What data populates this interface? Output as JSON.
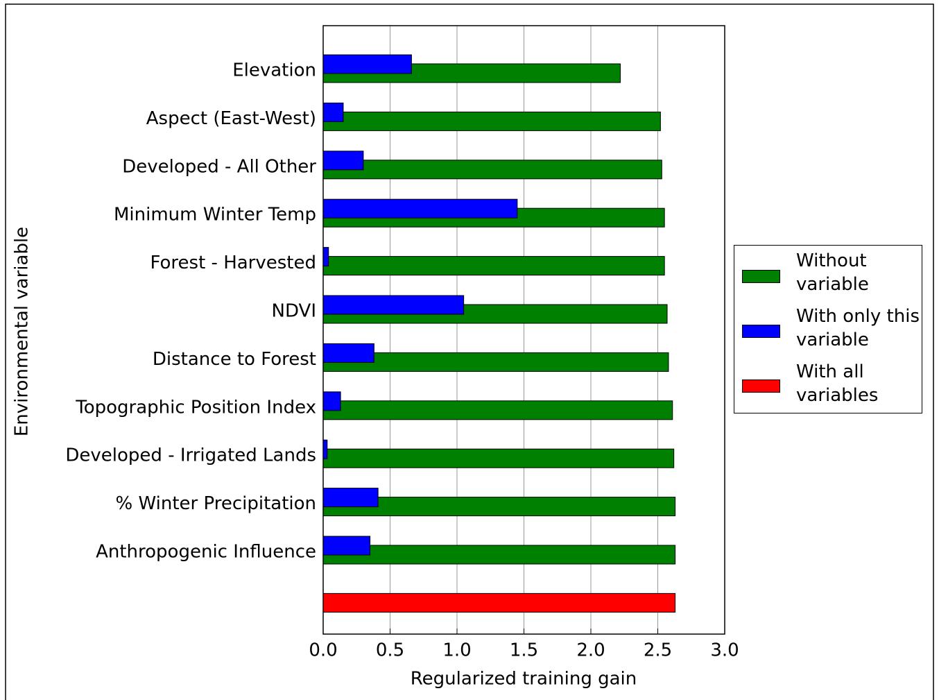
{
  "chart_data": {
    "type": "barh",
    "xlabel": "Regularized training gain",
    "ylabel": "Environmental variable",
    "categories": [
      "Elevation",
      "Aspect (East-West)",
      "Developed - All Other",
      "Minimum Winter Temp",
      "Forest - Harvested",
      "NDVI",
      "Distance to Forest",
      "Topographic Position Index",
      "Developed - Irrigated Lands",
      "% Winter Precipitation",
      "Anthropogenic Influence",
      null
    ],
    "series": [
      {
        "name": "Without variable",
        "color": "#008000",
        "values": [
          2.22,
          2.52,
          2.53,
          2.55,
          2.55,
          2.57,
          2.58,
          2.61,
          2.62,
          2.63,
          2.63,
          null
        ]
      },
      {
        "name": "With only this variable",
        "color": "#0000ff",
        "values": [
          0.66,
          0.15,
          0.3,
          1.45,
          0.04,
          1.05,
          0.38,
          0.13,
          0.03,
          0.41,
          0.35,
          null
        ]
      },
      {
        "name": "With all variables",
        "color": "#ff0000",
        "values": [
          null,
          null,
          null,
          null,
          null,
          null,
          null,
          null,
          null,
          null,
          null,
          2.63
        ]
      }
    ],
    "xlim": [
      0,
      3
    ],
    "xticks": [
      {
        "value": 0,
        "label": "0.0"
      },
      {
        "value": 0.5,
        "label": "0.5"
      },
      {
        "value": 1,
        "label": "1.0"
      },
      {
        "value": 1.5,
        "label": "1.5"
      },
      {
        "value": 2,
        "label": "2.0"
      },
      {
        "value": 2.5,
        "label": "2.5"
      },
      {
        "value": 3,
        "label": "3.0"
      }
    ],
    "grid": true,
    "legend": "right"
  }
}
